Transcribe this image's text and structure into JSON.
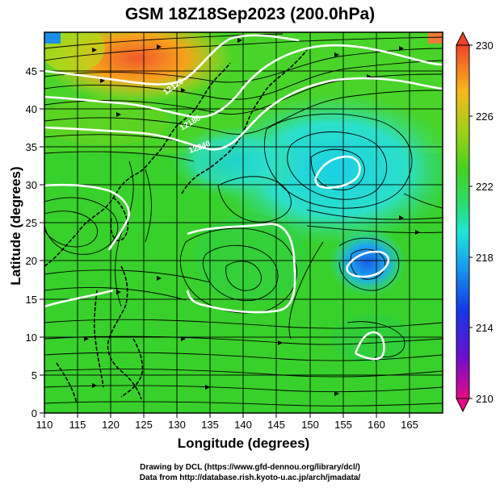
{
  "title": "GSM 18Z18Sep2023 (200.0hPa)",
  "x_axis": {
    "label": "Longitude (degrees)",
    "ticks": [
      "110",
      "115",
      "120",
      "125",
      "130",
      "135",
      "140",
      "145",
      "150",
      "155",
      "160",
      "165"
    ],
    "range": [
      110,
      170
    ]
  },
  "y_axis": {
    "label": "Latitude  (degrees)",
    "ticks": [
      "0",
      "5",
      "10",
      "15",
      "20",
      "25",
      "30",
      "35",
      "40",
      "45"
    ],
    "range": [
      0,
      50
    ]
  },
  "colorbar": {
    "labels": [
      "230",
      "226",
      "222",
      "218",
      "214",
      "210"
    ],
    "range": [
      210,
      230
    ],
    "colors": [
      "#e60a86",
      "#4b0fd0",
      "#1238e8",
      "#1aa0ee",
      "#1ee6d8",
      "#2bdc3c",
      "#6ec81a",
      "#f7b81c",
      "#f0442a"
    ]
  },
  "map_labels": [
    "12120",
    "12180",
    "12240"
  ],
  "credits": {
    "line1": "Drawing by DCL (https://www.gfd-dennou.org/library/dcl/)",
    "line2": "Data from http://database.rish.kyoto-u.ac.jp/arch/jmadata/"
  }
}
